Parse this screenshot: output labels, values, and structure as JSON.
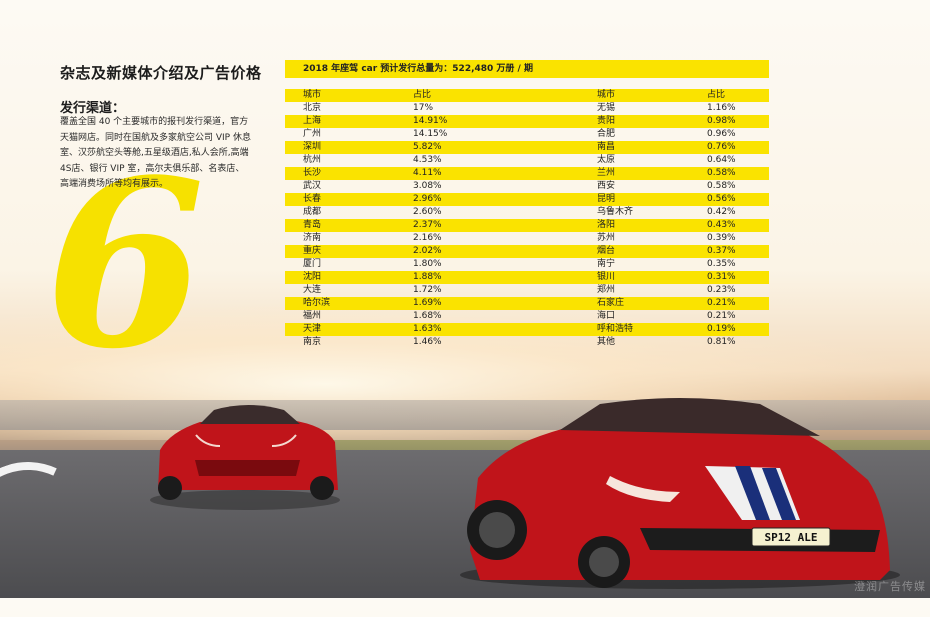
{
  "page": {
    "title": "杂志及新媒体介绍及广告价格",
    "subtitle": "发行渠道：",
    "description": "覆盖全国 40 个主要城市的报刊发行渠道，官方天猫网店。同时在国航及多家航空公司 VIP 休息室、汉莎航空头等舱,五星级酒店,私人会所,高端 4S店、银行 VIP 室，高尔夫俱乐部、名表店、高端消费场所等均有展示。",
    "big_number": "6"
  },
  "table": {
    "header": "2018 年座驾 car 预计发行总量为：522,480 万册 / 期",
    "columns": [
      "城市",
      "占比",
      "城市",
      "占比"
    ],
    "rows": [
      [
        "北京",
        "17%",
        "无锡",
        "1.16%"
      ],
      [
        "上海",
        "14.91%",
        "贵阳",
        "0.98%"
      ],
      [
        "广州",
        "14.15%",
        "合肥",
        "0.96%"
      ],
      [
        "深圳",
        "5.82%",
        "南昌",
        "0.76%"
      ],
      [
        "杭州",
        "4.53%",
        "太原",
        "0.64%"
      ],
      [
        "长沙",
        "4.11%",
        "兰州",
        "0.58%"
      ],
      [
        "武汉",
        "3.08%",
        "西安",
        "0.58%"
      ],
      [
        "长春",
        "2.96%",
        "昆明",
        "0.56%"
      ],
      [
        "成都",
        "2.60%",
        "乌鲁木齐",
        "0.42%"
      ],
      [
        "青岛",
        "2.37%",
        "洛阳",
        "0.43%"
      ],
      [
        "济南",
        "2.16%",
        "苏州",
        "0.39%"
      ],
      [
        "重庆",
        "2.02%",
        "烟台",
        "0.37%"
      ],
      [
        "厦门",
        "1.80%",
        "南宁",
        "0.35%"
      ],
      [
        "沈阳",
        "1.88%",
        "银川",
        "0.31%"
      ],
      [
        "大连",
        "1.72%",
        "郑州",
        "0.23%"
      ],
      [
        "哈尔滨",
        "1.69%",
        "石家庄",
        "0.21%"
      ],
      [
        "福州",
        "1.68%",
        "海口",
        "0.21%"
      ],
      [
        "天津",
        "1.63%",
        "呼和浩特",
        "0.19%"
      ],
      [
        "南京",
        "1.46%",
        "其他",
        "0.81%"
      ]
    ]
  },
  "car": {
    "plate": "SP12 ALE"
  },
  "watermark": "澄润广告传媒",
  "colors": {
    "accent_yellow": "#fae300",
    "car_red": "#c0141a"
  }
}
